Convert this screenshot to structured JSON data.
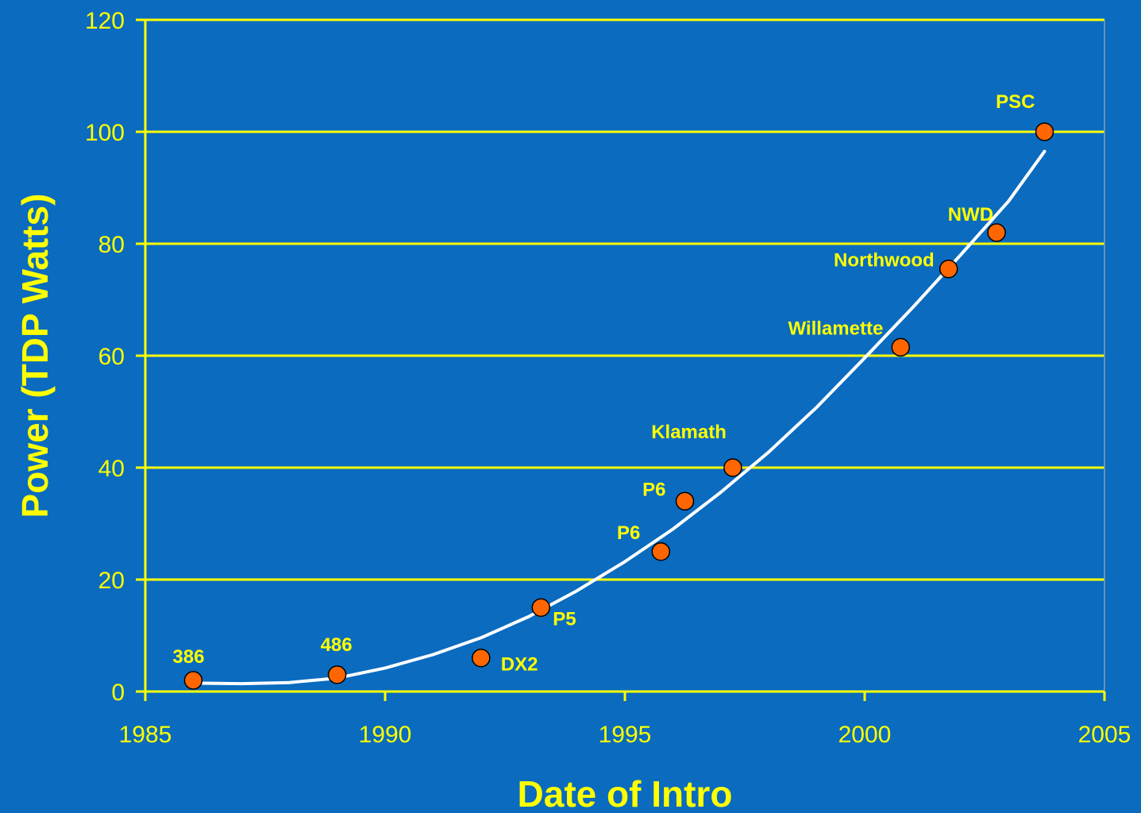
{
  "chart_data": {
    "type": "scatter",
    "title": "",
    "xlabel": "Date of Intro",
    "ylabel": "Power (TDP Watts)",
    "xlim": [
      1985,
      2005
    ],
    "ylim": [
      0,
      120
    ],
    "xticks": [
      1985,
      1990,
      1995,
      2000,
      2005
    ],
    "yticks": [
      0,
      20,
      40,
      60,
      80,
      100,
      120
    ],
    "grid": "horizontal",
    "legend": "none",
    "series": [
      {
        "points": [
          {
            "label": "386",
            "x": 1986.0,
            "y": 2
          },
          {
            "label": "486",
            "x": 1989.0,
            "y": 3
          },
          {
            "label": "DX2",
            "x": 1992.0,
            "y": 6
          },
          {
            "label": "P5",
            "x": 1993.25,
            "y": 15
          },
          {
            "label": "P6",
            "x": 1995.75,
            "y": 25
          },
          {
            "label": "P6",
            "x": 1996.25,
            "y": 34
          },
          {
            "label": "Klamath",
            "x": 1997.25,
            "y": 40
          },
          {
            "label": "Willamette",
            "x": 2000.75,
            "y": 61.5
          },
          {
            "label": "Northwood",
            "x": 2001.75,
            "y": 75.5
          },
          {
            "label": "NWD",
            "x": 2002.75,
            "y": 82
          },
          {
            "label": "PSC",
            "x": 2003.75,
            "y": 100
          }
        ]
      }
    ],
    "trendline": {
      "type": "polynomial",
      "points": [
        [
          1986.0,
          1.5
        ],
        [
          1987.0,
          1.4
        ],
        [
          1988.0,
          1.6
        ],
        [
          1989.0,
          2.4
        ],
        [
          1990.0,
          4.2
        ],
        [
          1991.0,
          6.6
        ],
        [
          1992.0,
          9.6
        ],
        [
          1993.0,
          13.4
        ],
        [
          1994.0,
          18.0
        ],
        [
          1995.0,
          23.2
        ],
        [
          1996.0,
          29.0
        ],
        [
          1997.0,
          35.6
        ],
        [
          1998.0,
          42.8
        ],
        [
          1999.0,
          50.8
        ],
        [
          2000.0,
          59.6
        ],
        [
          2001.0,
          68.6
        ],
        [
          2002.0,
          78.0
        ],
        [
          2003.0,
          87.6
        ],
        [
          2003.75,
          96.5
        ]
      ]
    },
    "colors": {
      "background": "#0a6bbf",
      "axis": "#ffff00",
      "gridline": "#ffff00",
      "text": "#ffff00",
      "marker_fill": "#ff6600",
      "marker_stroke": "#000000",
      "trendline": "#ffffff"
    }
  }
}
